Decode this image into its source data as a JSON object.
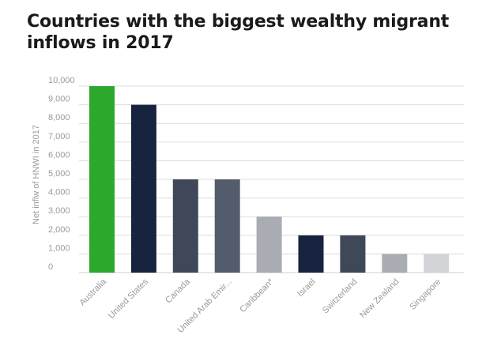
{
  "chart_data": {
    "type": "bar",
    "title_lines": [
      "Countries with the biggest wealthy migrant",
      "inflows in 2017"
    ],
    "xlabel": "",
    "ylabel": "Net inflw of HNWI in 2017",
    "ylim": [
      0,
      10000
    ],
    "y_ticks": [
      "0",
      "1,000",
      "2,000",
      "3,000",
      "4,000",
      "5,000",
      "6,000",
      "7,000",
      "8,000",
      "9,000",
      "10,000"
    ],
    "categories": [
      "Australia",
      "United States",
      "Canada",
      "United Arab Emir...",
      "Caribbean*",
      "Israel",
      "Switzerland",
      "New Zealand",
      "Singapore"
    ],
    "values": [
      10000,
      9000,
      5000,
      5000,
      3000,
      2000,
      2000,
      1000,
      1000
    ],
    "colors": [
      "#2ca82c",
      "#17233f",
      "#3e4859",
      "#535c6b",
      "#a9acb3",
      "#17233f",
      "#3e4859",
      "#a9acb3",
      "#d2d4d8"
    ],
    "grid": true,
    "legend": "none"
  }
}
